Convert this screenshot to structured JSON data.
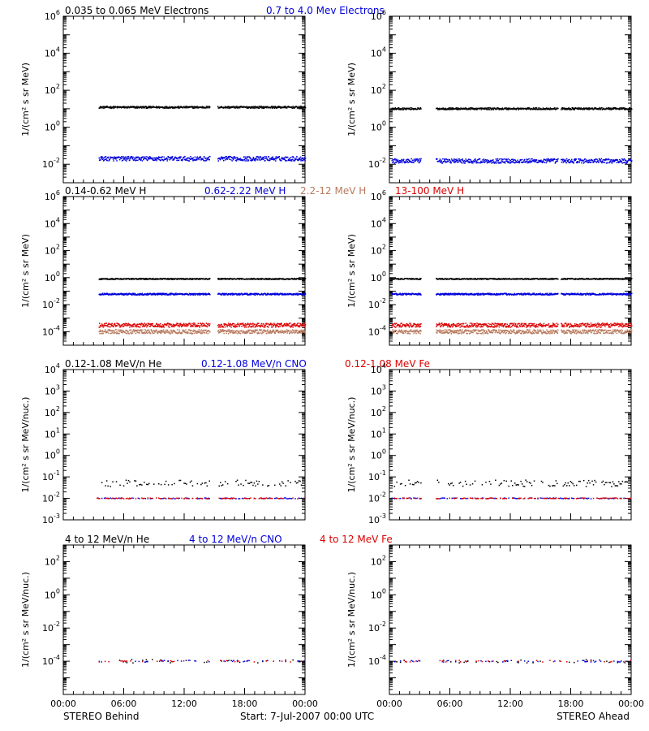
{
  "colors": {
    "black": "#000000",
    "blue": "#0000dd",
    "tan": "#b87a5e",
    "red": "#dd0000"
  },
  "time_axis": {
    "ticks": [
      "00:00",
      "06:00",
      "12:00",
      "18:00",
      "00:00"
    ],
    "range_hours": [
      0,
      24
    ]
  },
  "footer": {
    "left": "STEREO Behind",
    "center": "Start:  7-Jul-2007 00:00 UTC",
    "right": "STEREO Ahead"
  },
  "chart_data": [
    {
      "type": "scatter",
      "row": 1,
      "panels": [
        "STEREO Behind",
        "STEREO Ahead"
      ],
      "ylabel": "1/(cm² s sr MeV)",
      "yscale": "log",
      "ylim": [
        0.001,
        1000000
      ],
      "ytick_exponents": [
        -2,
        0,
        2,
        4,
        6
      ],
      "series": [
        {
          "name": "0.035 to 0.065 MeV Electrons",
          "color": "#000000",
          "level": {
            "behind": 12,
            "ahead": 10
          },
          "spread_decades": 0.05
        },
        {
          "name": "0.7 to 4.0 Mev Electrons",
          "color": "#0000dd",
          "level": {
            "behind": 0.02,
            "ahead": 0.015
          },
          "spread_decades": 0.12
        }
      ],
      "coverage": {
        "behind": [
          [
            3.5,
            14.5
          ],
          [
            15.3,
            24
          ]
        ],
        "ahead": [
          [
            0.2,
            3.1
          ],
          [
            4.6,
            16.7
          ],
          [
            17.0,
            24
          ]
        ]
      }
    },
    {
      "type": "scatter",
      "row": 2,
      "panels": [
        "STEREO Behind",
        "STEREO Ahead"
      ],
      "ylabel": "1/(cm² s sr MeV)",
      "yscale": "log",
      "ylim": [
        1e-05,
        1000000
      ],
      "ytick_exponents": [
        -4,
        -2,
        0,
        2,
        4,
        6
      ],
      "series": [
        {
          "name": "0.14-0.62 MeV H",
          "color": "#000000",
          "level": {
            "behind": 0.8,
            "ahead": 0.8
          },
          "spread_decades": 0.04
        },
        {
          "name": "0.62-2.22 MeV H",
          "color": "#0000dd",
          "level": {
            "behind": 0.06,
            "ahead": 0.06
          },
          "spread_decades": 0.06
        },
        {
          "name": "2.2-12 MeV H",
          "color": "#b87a5e",
          "level": {
            "behind": 0.0001,
            "ahead": 0.0001
          },
          "spread_decades": 0.15
        },
        {
          "name": "13-100 MeV H",
          "color": "#dd0000",
          "level": {
            "behind": 0.0003,
            "ahead": 0.0003
          },
          "spread_decades": 0.15
        }
      ],
      "coverage": {
        "behind": [
          [
            3.5,
            14.5
          ],
          [
            15.3,
            24
          ]
        ],
        "ahead": [
          [
            0.2,
            3.1
          ],
          [
            4.6,
            16.7
          ],
          [
            17.0,
            24
          ]
        ]
      }
    },
    {
      "type": "scatter",
      "row": 3,
      "panels": [
        "STEREO Behind",
        "STEREO Ahead"
      ],
      "ylabel": "1/(cm² s sr MeV/nuc.)",
      "yscale": "log",
      "ylim": [
        0.001,
        10000
      ],
      "ytick_exponents": [
        -3,
        -2,
        -1,
        0,
        1,
        2,
        3,
        4
      ],
      "series": [
        {
          "name": "0.12-1.08 MeV/n He",
          "color": "#000000",
          "level": {
            "behind": 0.05,
            "ahead": 0.05
          },
          "spread_decades": 0.15
        },
        {
          "name": "0.12-1.08 MeV/n CNO",
          "color": "#0000dd",
          "level": {
            "behind": 0.01,
            "ahead": 0.01
          },
          "spread_decades": 0.02
        },
        {
          "name": "0.12-1.08 MeV Fe",
          "color": "#dd0000",
          "level": {
            "behind": 0.01,
            "ahead": 0.01
          },
          "spread_decades": 0.02
        }
      ],
      "coverage": {
        "behind": [
          [
            3.3,
            14.5
          ],
          [
            15.3,
            24
          ]
        ],
        "ahead": [
          [
            0.2,
            3.1
          ],
          [
            4.6,
            24
          ]
        ]
      }
    },
    {
      "type": "scatter",
      "row": 4,
      "panels": [
        "STEREO Behind",
        "STEREO Ahead"
      ],
      "ylabel": "1/(cm² s sr MeV/nuc.)",
      "yscale": "log",
      "ylim": [
        1e-06,
        1000
      ],
      "ytick_exponents": [
        -4,
        -2,
        0,
        2
      ],
      "series": [
        {
          "name": "4 to 12 MeV/n He",
          "color": "#000000",
          "level": {
            "behind": 0.0001,
            "ahead": 0.0001
          },
          "spread_decades": 0.1
        },
        {
          "name": "4 to 12 MeV/n CNO",
          "color": "#0000dd",
          "level": {
            "behind": 0.0001,
            "ahead": 0.0001
          },
          "spread_decades": 0.05
        },
        {
          "name": "4 to 12 MeV Fe",
          "color": "#dd0000",
          "level": {
            "behind": 0.0001,
            "ahead": 0.0001
          },
          "spread_decades": 0.05
        }
      ],
      "coverage": {
        "behind": [
          [
            3.5,
            14.5
          ],
          [
            15.3,
            24
          ]
        ],
        "ahead": [
          [
            0.2,
            3.1
          ],
          [
            4.6,
            24
          ]
        ]
      }
    }
  ]
}
